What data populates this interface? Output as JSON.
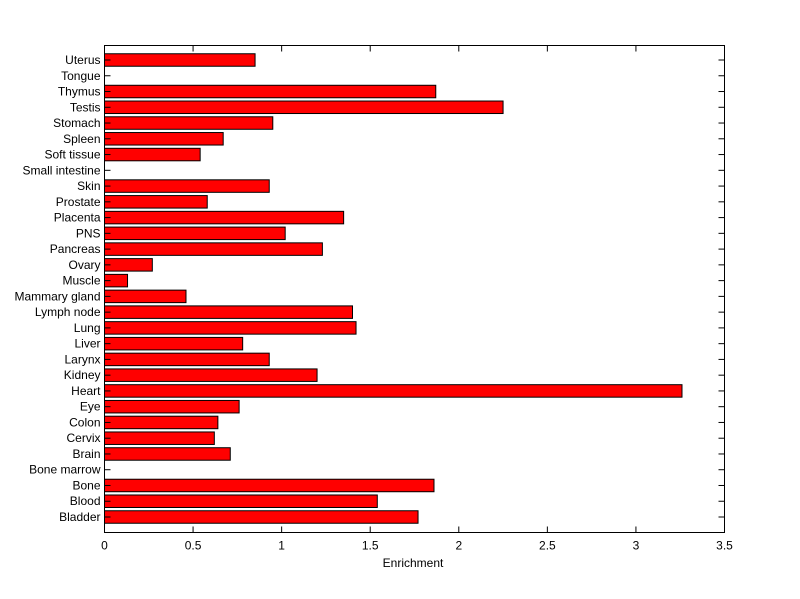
{
  "chart_data": {
    "type": "bar",
    "orientation": "horizontal",
    "title": "",
    "xlabel": "Enrichment",
    "ylabel": "",
    "xlim": [
      0,
      3.5
    ],
    "xticks": [
      0,
      0.5,
      1,
      1.5,
      2,
      2.5,
      3,
      3.5
    ],
    "xtick_labels": [
      "0",
      "0.5",
      "1",
      "1.5",
      "2",
      "2.5",
      "3",
      "3.5"
    ],
    "grid": false,
    "legend": "none",
    "bar_color": "#ff0000",
    "categories": [
      "Bladder",
      "Blood",
      "Bone",
      "Bone marrow",
      "Brain",
      "Cervix",
      "Colon",
      "Eye",
      "Heart",
      "Kidney",
      "Larynx",
      "Liver",
      "Lung",
      "Lymph node",
      "Mammary gland",
      "Muscle",
      "Ovary",
      "Pancreas",
      "PNS",
      "Placenta",
      "Prostate",
      "Skin",
      "Small intestine",
      "Soft tissue",
      "Spleen",
      "Stomach",
      "Testis",
      "Thymus",
      "Tongue",
      "Uterus"
    ],
    "values": [
      1.77,
      1.54,
      1.86,
      0,
      0.71,
      0.62,
      0.64,
      0.76,
      3.26,
      1.2,
      0.93,
      0.78,
      1.42,
      1.4,
      0.46,
      0.13,
      0.27,
      1.23,
      1.02,
      1.35,
      0.58,
      0.93,
      0,
      0.54,
      0.67,
      0.95,
      2.25,
      1.87,
      0,
      0.85
    ]
  }
}
